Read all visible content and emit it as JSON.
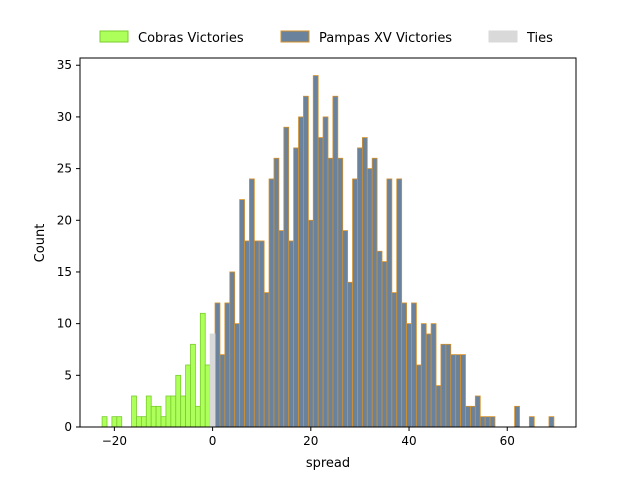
{
  "chart_data": {
    "type": "bar",
    "xlabel": "spread",
    "ylabel": "Count",
    "xlim": [
      -27,
      74
    ],
    "ylim": [
      0,
      35.7
    ],
    "xticks": [
      -20,
      0,
      20,
      40,
      60
    ],
    "yticks": [
      0,
      5,
      10,
      15,
      20,
      25,
      30,
      35
    ],
    "grid": false,
    "legend_position": "top-center",
    "bin_width": 1,
    "series": [
      {
        "name": "Cobras Victories",
        "color": "#adff5a",
        "edge": "#7acc2e",
        "x": [
          -22,
          -20,
          -19,
          -16,
          -15,
          -14,
          -13,
          -12,
          -11,
          -10,
          -9,
          -8,
          -7,
          -6,
          -5,
          -4,
          -3,
          -2,
          -1
        ],
        "values": [
          1,
          1,
          1,
          3,
          1,
          1,
          3,
          2,
          2,
          1,
          3,
          3,
          5,
          3,
          6,
          8,
          2,
          11,
          6
        ]
      },
      {
        "name": "Pampas XV Victories",
        "color": "#6a829c",
        "edge": "#d4902a",
        "x": [
          1,
          2,
          3,
          4,
          5,
          6,
          7,
          8,
          9,
          10,
          11,
          12,
          13,
          14,
          15,
          16,
          17,
          18,
          19,
          20,
          21,
          22,
          23,
          24,
          25,
          26,
          27,
          28,
          29,
          30,
          31,
          32,
          33,
          34,
          35,
          36,
          37,
          38,
          39,
          40,
          41,
          42,
          43,
          44,
          45,
          46,
          47,
          48,
          49,
          50,
          51,
          52,
          53,
          54,
          55,
          56,
          57,
          62,
          65,
          69
        ],
        "values": [
          12,
          7,
          12,
          15,
          10,
          22,
          18,
          24,
          18,
          18,
          13,
          24,
          26,
          19,
          29,
          18,
          27,
          30,
          32,
          20,
          34,
          28,
          30,
          26,
          32,
          26,
          19,
          14,
          24,
          27,
          28,
          25,
          26,
          17,
          16,
          24,
          13,
          24,
          12,
          10,
          12,
          6,
          10,
          9,
          10,
          4,
          8,
          8,
          7,
          7,
          7,
          2,
          2,
          3,
          1,
          1,
          1,
          2,
          1,
          1
        ]
      },
      {
        "name": "Ties",
        "color": "#d9d9d9",
        "edge": "#d9d9d9",
        "x": [
          0
        ],
        "values": [
          9
        ]
      }
    ]
  }
}
